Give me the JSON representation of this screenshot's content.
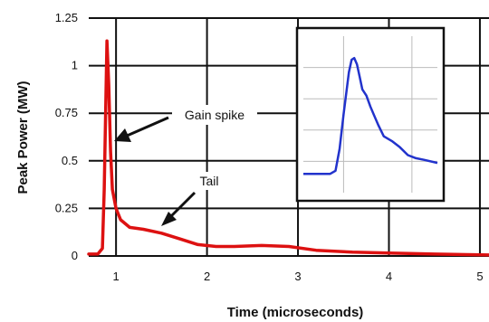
{
  "chart_data": [
    {
      "type": "line",
      "title": "",
      "xlabel": "Time (microseconds)",
      "ylabel": "Peak Power (MW)",
      "xlim": [
        0.7,
        5.1
      ],
      "ylim": [
        0,
        1.25
      ],
      "xticks": [
        1,
        2,
        3,
        4,
        5
      ],
      "yticks": [
        0,
        0.25,
        0.5,
        0.75,
        1,
        1.25
      ],
      "ytick_labels": [
        "0",
        "0.25",
        "0.5",
        "0.75",
        "1",
        "1.25"
      ],
      "grid": true,
      "series": [
        {
          "name": "",
          "color": "#dd1111",
          "x": [
            0.7,
            0.8,
            0.85,
            0.87,
            0.9,
            0.92,
            0.94,
            0.96,
            1.0,
            1.05,
            1.15,
            1.3,
            1.5,
            1.7,
            1.9,
            2.1,
            2.3,
            2.6,
            2.9,
            3.2,
            3.6,
            4.0,
            4.5,
            5.1
          ],
          "y": [
            0.01,
            0.01,
            0.04,
            0.35,
            1.13,
            0.9,
            0.55,
            0.35,
            0.25,
            0.19,
            0.15,
            0.14,
            0.12,
            0.09,
            0.06,
            0.05,
            0.05,
            0.055,
            0.05,
            0.03,
            0.02,
            0.015,
            0.01,
            0.005
          ]
        }
      ],
      "annotations": [
        {
          "text": "Gain spike",
          "x": 0.93,
          "y": 0.6
        },
        {
          "text": "Tail",
          "x": 1.45,
          "y": 0.15
        }
      ]
    },
    {
      "type": "line",
      "title": "",
      "grid": true,
      "xlim": [
        0,
        1
      ],
      "ylim": [
        0,
        1
      ],
      "series": [
        {
          "name": "",
          "color": "#2233cc",
          "x": [
            0.0,
            0.2,
            0.24,
            0.27,
            0.3,
            0.34,
            0.36,
            0.38,
            0.4,
            0.42,
            0.44,
            0.47,
            0.5,
            0.53,
            0.56,
            0.6,
            0.66,
            0.72,
            0.78,
            0.84,
            0.9,
            1.0
          ],
          "y": [
            0.12,
            0.12,
            0.14,
            0.28,
            0.5,
            0.77,
            0.85,
            0.86,
            0.82,
            0.74,
            0.66,
            0.62,
            0.55,
            0.49,
            0.43,
            0.36,
            0.33,
            0.29,
            0.24,
            0.22,
            0.21,
            0.19
          ]
        }
      ]
    }
  ]
}
